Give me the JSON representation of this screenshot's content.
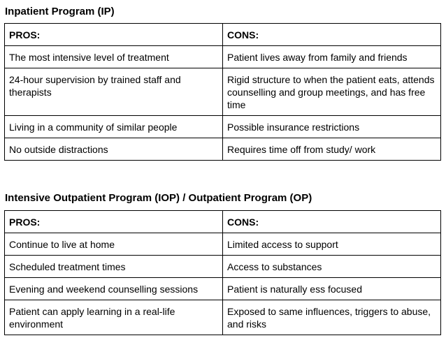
{
  "sections": [
    {
      "title": "Inpatient Program (IP)",
      "pros_header": "PROS:",
      "cons_header": "CONS:",
      "rows": [
        {
          "pro": "The most intensive level of treatment",
          "con": "Patient lives away from family and friends"
        },
        {
          "pro": "24-hour supervision by trained staff and therapists",
          "con": "Rigid structure to when the patient eats, attends counselling and group meetings, and has free time"
        },
        {
          "pro": "Living in a community of similar people",
          "con": "Possible insurance restrictions"
        },
        {
          "pro": "No outside distractions",
          "con": "Requires time off from study/ work"
        }
      ]
    },
    {
      "title": "Intensive Outpatient Program (IOP) / Outpatient Program (OP)",
      "pros_header": "PROS:",
      "cons_header": "CONS:",
      "rows": [
        {
          "pro": "Continue to live at home",
          "con": "Limited access to support"
        },
        {
          "pro": "Scheduled treatment times",
          "con": "Access to substances"
        },
        {
          "pro": "Evening and weekend counselling sessions",
          "con": "Patient is naturally ess focused"
        },
        {
          "pro": "Patient can apply learning in a real-life environment",
          "con": "Exposed to same influences, triggers to abuse, and risks"
        }
      ]
    }
  ]
}
